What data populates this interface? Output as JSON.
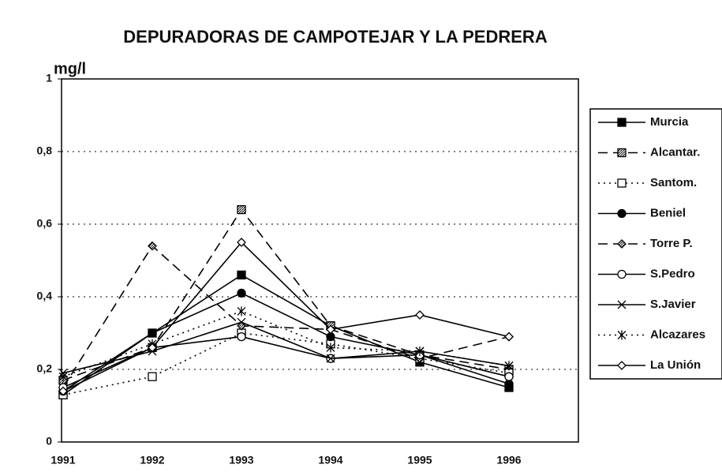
{
  "chart_data": {
    "type": "line",
    "title": "DEPURADORAS DE CAMPOTEJAR Y LA PEDRERA",
    "ylabel": "mg/l",
    "categories": [
      "1991",
      "1992",
      "1993",
      "1994",
      "1995",
      "1996"
    ],
    "ylim": [
      0,
      1
    ],
    "yticks": [
      0,
      {
        "value": 0.2,
        "label": "0,2"
      },
      {
        "value": 0.4,
        "label": "0,4"
      },
      {
        "value": 0.6,
        "label": "0,6"
      },
      {
        "value": 0.8,
        "label": "0,8"
      },
      1
    ],
    "grid": true,
    "legend": "right",
    "series": [
      {
        "name": "Murcia",
        "color": "#000000",
        "dash": "solid",
        "marker": "filled-square",
        "values": [
          0.13,
          0.3,
          0.46,
          0.32,
          0.22,
          0.15
        ]
      },
      {
        "name": "Alcantar.",
        "color": "#000000",
        "dash": "dashed",
        "marker": "hatched-square",
        "values": [
          0.17,
          0.26,
          0.64,
          0.32,
          0.24,
          0.2
        ]
      },
      {
        "name": "Santom.",
        "color": "#000000",
        "dash": "dotted",
        "marker": "open-square",
        "values": [
          0.13,
          0.18,
          0.3,
          0.27,
          0.23,
          0.19
        ]
      },
      {
        "name": "Beniel",
        "color": "#000000",
        "dash": "solid",
        "marker": "filled-circle",
        "values": [
          0.14,
          0.3,
          0.41,
          0.29,
          0.24,
          0.16
        ]
      },
      {
        "name": "Torre P.",
        "color": "#000000",
        "dash": "dashed",
        "marker": "hatched-diamond",
        "values": [
          0.15,
          0.54,
          0.32,
          0.31,
          0.23,
          0.29
        ]
      },
      {
        "name": "S.Pedro",
        "color": "#000000",
        "dash": "solid",
        "marker": "open-circle",
        "values": [
          0.15,
          0.26,
          0.29,
          0.23,
          0.24,
          0.18
        ]
      },
      {
        "name": "S.Javier",
        "color": "#000000",
        "dash": "solid",
        "marker": "x",
        "values": [
          0.19,
          0.25,
          0.33,
          0.23,
          0.25,
          0.21
        ]
      },
      {
        "name": "Alcazares",
        "color": "#000000",
        "dash": "dotted",
        "marker": "star",
        "values": [
          0.18,
          0.27,
          0.36,
          0.26,
          0.25,
          0.21
        ]
      },
      {
        "name": "La Unión",
        "color": "#000000",
        "dash": "solid",
        "marker": "open-diamond",
        "values": [
          0.14,
          0.26,
          0.55,
          0.31,
          0.35,
          0.29
        ]
      }
    ]
  }
}
